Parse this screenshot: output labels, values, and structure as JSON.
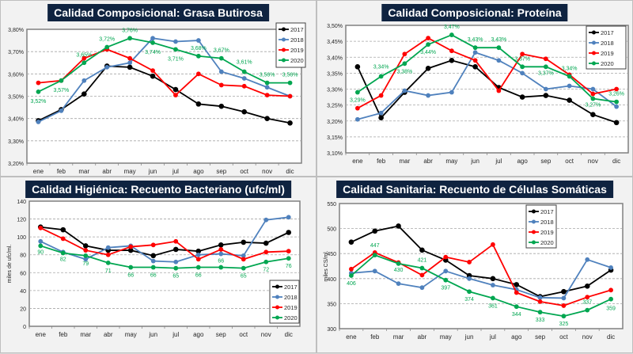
{
  "colors": {
    "2017": "#000000",
    "2018": "#4f81bd",
    "2019": "#ff0000",
    "2020": "#00a650"
  },
  "chart_data": [
    {
      "id": "fat",
      "type": "line",
      "title": "Calidad Composicional: Grasa Butirosa",
      "xlabel": "",
      "ylabel": "",
      "categories": [
        "ene",
        "feb",
        "mar",
        "abr",
        "may",
        "jun",
        "jul",
        "ago",
        "sep",
        "oct",
        "nov",
        "dic"
      ],
      "ylim": [
        3.2,
        3.8
      ],
      "yticks": [
        3.2,
        3.3,
        3.4,
        3.5,
        3.6,
        3.7,
        3.8
      ],
      "ytick_labels": [
        "3,20%",
        "3,30%",
        "3,40%",
        "3,50%",
        "3,60%",
        "3,70%",
        "3,80%"
      ],
      "grid": true,
      "legend_position": "top-right",
      "series": [
        {
          "name": "2017",
          "values": [
            3.39,
            3.44,
            3.51,
            3.635,
            3.63,
            3.59,
            3.53,
            3.465,
            3.455,
            3.43,
            3.4,
            3.38
          ]
        },
        {
          "name": "2018",
          "values": [
            3.385,
            3.435,
            3.57,
            3.63,
            3.65,
            3.76,
            3.745,
            3.75,
            3.61,
            3.58,
            3.54,
            3.5
          ]
        },
        {
          "name": "2019",
          "values": [
            3.56,
            3.57,
            3.67,
            3.71,
            3.67,
            3.615,
            3.505,
            3.6,
            3.55,
            3.545,
            3.505,
            3.5
          ]
        },
        {
          "name": "2020",
          "values": [
            3.52,
            3.57,
            3.65,
            3.72,
            3.76,
            3.74,
            3.71,
            3.68,
            3.67,
            3.61,
            3.56,
            3.56
          ],
          "labels": [
            "3,52%",
            "3,57%",
            "3,65%",
            "3,72%",
            "3,76%",
            "3,74%",
            "3,71%",
            "3,68%",
            "3,67%",
            "3,61%",
            "3,56%",
            "3,56%"
          ]
        }
      ]
    },
    {
      "id": "protein",
      "type": "line",
      "title": "Calidad Composicional: Proteína",
      "xlabel": "",
      "ylabel": "",
      "categories": [
        "ene",
        "feb",
        "mar",
        "abr",
        "may",
        "jun",
        "jul",
        "ago",
        "sep",
        "oct",
        "nov",
        "dic"
      ],
      "ylim": [
        3.1,
        3.5
      ],
      "yticks": [
        3.1,
        3.15,
        3.2,
        3.25,
        3.3,
        3.35,
        3.4,
        3.45,
        3.5
      ],
      "ytick_labels": [
        "3,10%",
        "3,15%",
        "3,20%",
        "3,25%",
        "3,30%",
        "3,35%",
        "3,40%",
        "3,45%",
        "3,50%"
      ],
      "grid": true,
      "legend_position": "top-right",
      "series": [
        {
          "name": "2017",
          "values": [
            3.37,
            3.21,
            3.29,
            3.365,
            3.39,
            3.37,
            3.305,
            3.275,
            3.28,
            3.265,
            3.22,
            3.195
          ]
        },
        {
          "name": "2018",
          "values": [
            3.205,
            3.225,
            3.295,
            3.28,
            3.29,
            3.415,
            3.39,
            3.35,
            3.3,
            3.31,
            3.3,
            3.245
          ]
        },
        {
          "name": "2019",
          "values": [
            3.24,
            3.28,
            3.41,
            3.46,
            3.42,
            3.39,
            3.295,
            3.41,
            3.395,
            3.345,
            3.285,
            3.3
          ]
        },
        {
          "name": "2020",
          "values": [
            3.29,
            3.34,
            3.38,
            3.44,
            3.47,
            3.43,
            3.43,
            3.37,
            3.37,
            3.34,
            3.27,
            3.26
          ],
          "labels": [
            "3,29%",
            "3,34%",
            "3,38%",
            "3,44%",
            "3,47%",
            "3,43%",
            "3,43%",
            "3,37%",
            "3,37%",
            "3,34%",
            "3,27%",
            "3,26%"
          ]
        }
      ]
    },
    {
      "id": "bacteria",
      "type": "line",
      "title": "Calidad Higiénica: Recuento Bacteriano (ufc/ml)",
      "xlabel": "",
      "ylabel": "miles de ufc/ml.",
      "categories": [
        "ene",
        "feb",
        "mar",
        "abr",
        "may",
        "jun",
        "jul",
        "ago",
        "sep",
        "oct",
        "nov",
        "dic"
      ],
      "ylim": [
        0,
        140
      ],
      "yticks": [
        0,
        20,
        40,
        60,
        80,
        100,
        120,
        140
      ],
      "ytick_labels": [
        "0",
        "20",
        "40",
        "60",
        "80",
        "100",
        "120",
        "140"
      ],
      "grid": true,
      "legend_position": "bottom-right",
      "series": [
        {
          "name": "2017",
          "values": [
            111,
            108,
            90,
            85,
            85,
            79,
            86,
            84,
            91,
            94,
            93,
            105
          ]
        },
        {
          "name": "2018",
          "values": [
            95,
            83,
            75,
            88,
            90,
            73,
            72,
            80,
            81,
            79,
            119,
            122
          ]
        },
        {
          "name": "2019",
          "values": [
            110,
            98,
            85,
            80,
            89,
            91,
            95,
            75,
            86,
            75,
            83,
            84
          ]
        },
        {
          "name": "2020",
          "values": [
            90,
            82,
            79,
            71,
            66,
            66,
            65,
            66,
            66,
            65,
            72,
            76
          ],
          "labels": [
            "90",
            "82",
            "79",
            "71",
            "66",
            "66",
            "65",
            "66",
            "66",
            "65",
            "72",
            "76"
          ]
        }
      ]
    },
    {
      "id": "somatic",
      "type": "line",
      "title": "Calidad Sanitaria: Recuento de Células Somáticas",
      "xlabel": "",
      "ylabel": "miles CS/ml.",
      "categories": [
        "ene",
        "feb",
        "mar",
        "abr",
        "may",
        "jun",
        "jul",
        "ago",
        "sep",
        "oct",
        "nov",
        "dic"
      ],
      "ylim": [
        300,
        550
      ],
      "yticks": [
        300,
        350,
        400,
        450,
        500,
        550
      ],
      "ytick_labels": [
        "300",
        "350",
        "400",
        "450",
        "500",
        "550"
      ],
      "grid": true,
      "legend_position": "top-center",
      "series": [
        {
          "name": "2017",
          "values": [
            473,
            495,
            505,
            457,
            437,
            406,
            400,
            388,
            364,
            374,
            385,
            417
          ]
        },
        {
          "name": "2018",
          "values": [
            411,
            415,
            390,
            382,
            415,
            400,
            387,
            378,
            362,
            361,
            438,
            422
          ]
        },
        {
          "name": "2019",
          "values": [
            419,
            452,
            432,
            407,
            443,
            433,
            468,
            372,
            354,
            346,
            363,
            377
          ]
        },
        {
          "name": "2020",
          "values": [
            406,
            447,
            430,
            421,
            397,
            374,
            361,
            344,
            333,
            325,
            337,
            359
          ],
          "labels": [
            "406",
            "447",
            "430",
            "421",
            "397",
            "374",
            "361",
            "344",
            "333",
            "325",
            "337",
            "359"
          ]
        }
      ]
    }
  ]
}
